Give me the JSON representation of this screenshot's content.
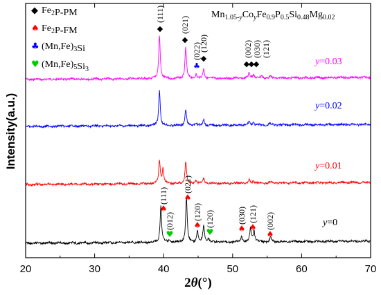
{
  "chart_data": {
    "type": "line",
    "xlabel": "2θ(°)",
    "ylabel": "Intensity(a.u.)",
    "xlim": [
      20,
      70
    ],
    "xticks": [
      "20",
      "30",
      "40",
      "50",
      "60",
      "70"
    ],
    "formula": "Mn1.05-yCoyFe0.9P0.5Si0.48Mg0.02",
    "legend": [
      {
        "label": "Fe2P-PM",
        "symbol": "diamond",
        "color": "#000000"
      },
      {
        "label": "Fe2P-FM",
        "symbol": "spade",
        "color": "#ff0000"
      },
      {
        "label": "(Mn,Fe)3Si",
        "symbol": "club",
        "color": "#0000ff"
      },
      {
        "label": "(Mn,Fe)5Si3",
        "symbol": "heart",
        "color": "#00cc00"
      }
    ],
    "series": [
      {
        "name": "y=0.03",
        "color": "#ff00ff",
        "peaks": [
          [
            39.4,
            1.0
          ],
          [
            43.2,
            0.72
          ],
          [
            44.7,
            0.1
          ],
          [
            45.8,
            0.22
          ],
          [
            52.4,
            0.12
          ],
          [
            53.0,
            0.1
          ],
          [
            54.2,
            0.05
          ],
          [
            55.4,
            0.04
          ]
        ]
      },
      {
        "name": "y=0.02",
        "color": "#0000ff",
        "peaks": [
          [
            39.4,
            1.0
          ],
          [
            43.2,
            0.45
          ],
          [
            44.7,
            0.08
          ],
          [
            45.8,
            0.17
          ],
          [
            52.4,
            0.1
          ],
          [
            53.0,
            0.08
          ],
          [
            55.4,
            0.04
          ]
        ]
      },
      {
        "name": "y=0.01",
        "color": "#ff0000",
        "peaks": [
          [
            39.4,
            0.9
          ],
          [
            39.9,
            0.55
          ],
          [
            43.2,
            0.85
          ],
          [
            44.7,
            0.12
          ],
          [
            45.8,
            0.2
          ],
          [
            51.3,
            0.06
          ],
          [
            52.4,
            0.12
          ],
          [
            53.0,
            0.08
          ],
          [
            55.4,
            0.05
          ]
        ]
      },
      {
        "name": "y=0",
        "color": "#000000",
        "peaks": [
          [
            39.6,
            0.83
          ],
          [
            40.8,
            0.05
          ],
          [
            43.3,
            1.0
          ],
          [
            44.9,
            0.25
          ],
          [
            45.8,
            0.38
          ],
          [
            46.5,
            0.08
          ],
          [
            51.3,
            0.13
          ],
          [
            52.6,
            0.3
          ],
          [
            53.1,
            0.25
          ],
          [
            55.5,
            0.1
          ]
        ]
      }
    ],
    "peak_labels": {
      "y=0.03": [
        {
          "x": 39.4,
          "hkl": "(111)",
          "marker": "diamond"
        },
        {
          "x": 43.2,
          "hkl": "(021)",
          "marker": "diamond"
        },
        {
          "x": 44.7,
          "hkl": "(022)",
          "marker": "club"
        },
        {
          "x": 45.8,
          "hkl": "(120)",
          "marker": "diamond"
        },
        {
          "x": 52.4,
          "hkl": "(002)",
          "marker": "diamond"
        },
        {
          "x": 53.0,
          "hkl": "(030)",
          "marker": "diamond"
        },
        {
          "x": 54.2,
          "hkl": "(121)",
          "marker": "diamond"
        }
      ],
      "y=0": [
        {
          "x": 39.6,
          "hkl": "(111)",
          "marker": "spade"
        },
        {
          "x": 40.8,
          "hkl": "(012)",
          "marker": "heart"
        },
        {
          "x": 43.3,
          "hkl": "(021)",
          "marker": "spade"
        },
        {
          "x": 44.9,
          "hkl": "(120)",
          "marker": "spade"
        },
        {
          "x": 46.5,
          "hkl": "(120)",
          "marker": "heart"
        },
        {
          "x": 51.3,
          "hkl": "(030)",
          "marker": "spade"
        },
        {
          "x": 52.6,
          "hkl": "(121)",
          "marker": "spade"
        },
        {
          "x": 55.5,
          "hkl": "(002)",
          "marker": "spade"
        }
      ]
    }
  }
}
